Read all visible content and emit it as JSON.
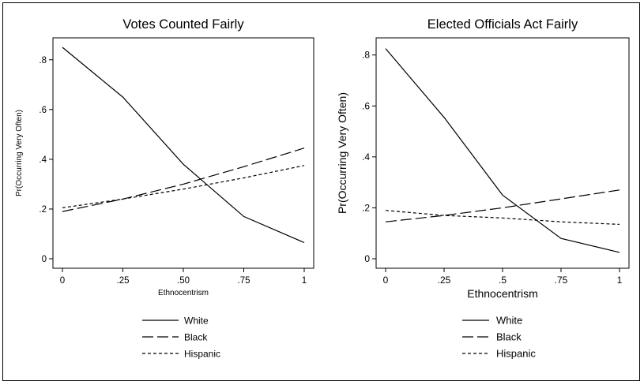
{
  "chart_data": [
    {
      "type": "line",
      "title": "Votes Counted Fairly",
      "xlabel": "Ethnocentrism",
      "ylabel": "Pr(Occurring Very Often)",
      "x": [
        0,
        0.25,
        0.5,
        0.75,
        1
      ],
      "x_tick_values": [
        0,
        0.25,
        0.5,
        0.75,
        1
      ],
      "x_tick_labels": [
        "0",
        ".25",
        ".50",
        ".75",
        "1"
      ],
      "y_tick_values": [
        0,
        0.2,
        0.4,
        0.6,
        0.8
      ],
      "y_tick_labels": [
        "0",
        ".2",
        ".4",
        ".6",
        ".8"
      ],
      "xlim": [
        0,
        1
      ],
      "ylim": [
        0,
        0.85
      ],
      "grid": false,
      "legend_position": "bottom",
      "series": [
        {
          "name": "White",
          "style": "solid",
          "values": [
            0.85,
            0.65,
            0.38,
            0.17,
            0.065
          ]
        },
        {
          "name": "Black",
          "style": "long-dash",
          "values": [
            0.19,
            0.24,
            0.3,
            0.37,
            0.445
          ]
        },
        {
          "name": "Hispanic",
          "style": "short-dash",
          "values": [
            0.205,
            0.24,
            0.28,
            0.325,
            0.375
          ]
        }
      ]
    },
    {
      "type": "line",
      "title": "Elected Officials Act Fairly",
      "xlabel": "Ethnocentrism",
      "ylabel": "Pr(Occurring Very Often)",
      "x": [
        0,
        0.25,
        0.5,
        0.75,
        1
      ],
      "x_tick_values": [
        0,
        0.25,
        0.5,
        0.75,
        1
      ],
      "x_tick_labels": [
        "0",
        ".25",
        ".5",
        ".75",
        "1"
      ],
      "y_tick_values": [
        0,
        0.2,
        0.4,
        0.6,
        0.8
      ],
      "y_tick_labels": [
        "0",
        ".2",
        ".4",
        ".6",
        ".8"
      ],
      "xlim": [
        0,
        1
      ],
      "ylim": [
        0,
        0.83
      ],
      "grid": false,
      "legend_position": "bottom",
      "series": [
        {
          "name": "White",
          "style": "solid",
          "values": [
            0.825,
            0.555,
            0.25,
            0.08,
            0.025
          ]
        },
        {
          "name": "Black",
          "style": "long-dash",
          "values": [
            0.145,
            0.17,
            0.2,
            0.235,
            0.27
          ]
        },
        {
          "name": "Hispanic",
          "style": "short-dash",
          "values": [
            0.19,
            0.17,
            0.16,
            0.145,
            0.135
          ]
        }
      ]
    }
  ]
}
